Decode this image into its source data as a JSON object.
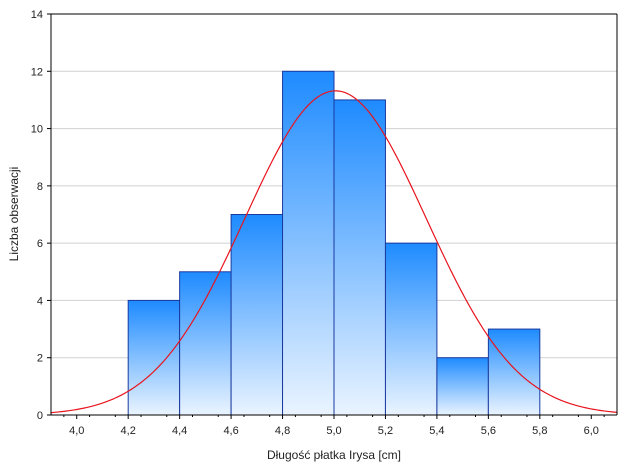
{
  "chart_data": {
    "type": "bar",
    "subtype": "histogram-with-normal-curve",
    "bins": [
      {
        "from": 4.2,
        "to": 4.4,
        "count": 4
      },
      {
        "from": 4.4,
        "to": 4.6,
        "count": 5
      },
      {
        "from": 4.6,
        "to": 4.8,
        "count": 7
      },
      {
        "from": 4.8,
        "to": 5.0,
        "count": 12
      },
      {
        "from": 5.0,
        "to": 5.2,
        "count": 11
      },
      {
        "from": 5.2,
        "to": 5.4,
        "count": 6
      },
      {
        "from": 5.4,
        "to": 5.6,
        "count": 2
      },
      {
        "from": 5.6,
        "to": 5.8,
        "count": 3
      }
    ],
    "normal_curve": {
      "mean": 5.006,
      "sd": 0.3525,
      "n": 50,
      "bin_width": 0.2,
      "color": "#e8141e"
    },
    "title": "",
    "xlabel": "Długość płatka Irysa [cm]",
    "ylabel": "Liczba obserwacji",
    "xlim": [
      3.9,
      6.1
    ],
    "ylim": [
      0,
      14
    ],
    "xticks": [
      4.0,
      4.2,
      4.4,
      4.6,
      4.8,
      5.0,
      5.2,
      5.4,
      5.6,
      5.8,
      6.0
    ],
    "xtick_labels": [
      "4,0",
      "4,2",
      "4,4",
      "4,6",
      "4,8",
      "5,0",
      "5,2",
      "5,4",
      "5,6",
      "5,8",
      "6,0"
    ],
    "yticks": [
      0,
      2,
      4,
      6,
      8,
      10,
      12,
      14
    ],
    "ytick_labels": [
      "0",
      "2",
      "4",
      "6",
      "8",
      "10",
      "12",
      "14"
    ],
    "grid": true,
    "colors": {
      "bar_top": "#1e8bff",
      "bar_bottom": "#eaf4ff",
      "bar_stroke": "#1a3aa0",
      "curve": "#e8141e",
      "grid": "#d0d0d0",
      "axis": "#000000"
    }
  }
}
